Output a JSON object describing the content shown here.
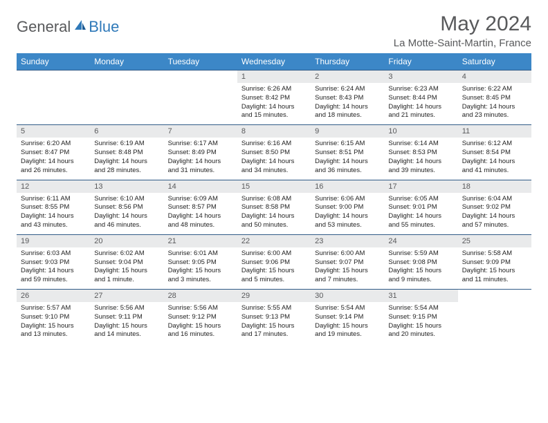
{
  "logo": {
    "text1": "General",
    "text2": "Blue"
  },
  "title": "May 2024",
  "location": "La Motte-Saint-Martin, France",
  "colors": {
    "header_bg": "#3c87c7",
    "header_text": "#ffffff",
    "daynum_bg": "#e9eaeb",
    "border": "#2f5a86",
    "text_gray": "#58595b",
    "logo_blue": "#2f79b9"
  },
  "dayNames": [
    "Sunday",
    "Monday",
    "Tuesday",
    "Wednesday",
    "Thursday",
    "Friday",
    "Saturday"
  ],
  "weeks": [
    {
      "nums": [
        "",
        "",
        "",
        "1",
        "2",
        "3",
        "4"
      ],
      "details": [
        "",
        "",
        "",
        "Sunrise: 6:26 AM\nSunset: 8:42 PM\nDaylight: 14 hours and 15 minutes.",
        "Sunrise: 6:24 AM\nSunset: 8:43 PM\nDaylight: 14 hours and 18 minutes.",
        "Sunrise: 6:23 AM\nSunset: 8:44 PM\nDaylight: 14 hours and 21 minutes.",
        "Sunrise: 6:22 AM\nSunset: 8:45 PM\nDaylight: 14 hours and 23 minutes."
      ]
    },
    {
      "nums": [
        "5",
        "6",
        "7",
        "8",
        "9",
        "10",
        "11"
      ],
      "details": [
        "Sunrise: 6:20 AM\nSunset: 8:47 PM\nDaylight: 14 hours and 26 minutes.",
        "Sunrise: 6:19 AM\nSunset: 8:48 PM\nDaylight: 14 hours and 28 minutes.",
        "Sunrise: 6:17 AM\nSunset: 8:49 PM\nDaylight: 14 hours and 31 minutes.",
        "Sunrise: 6:16 AM\nSunset: 8:50 PM\nDaylight: 14 hours and 34 minutes.",
        "Sunrise: 6:15 AM\nSunset: 8:51 PM\nDaylight: 14 hours and 36 minutes.",
        "Sunrise: 6:14 AM\nSunset: 8:53 PM\nDaylight: 14 hours and 39 minutes.",
        "Sunrise: 6:12 AM\nSunset: 8:54 PM\nDaylight: 14 hours and 41 minutes."
      ]
    },
    {
      "nums": [
        "12",
        "13",
        "14",
        "15",
        "16",
        "17",
        "18"
      ],
      "details": [
        "Sunrise: 6:11 AM\nSunset: 8:55 PM\nDaylight: 14 hours and 43 minutes.",
        "Sunrise: 6:10 AM\nSunset: 8:56 PM\nDaylight: 14 hours and 46 minutes.",
        "Sunrise: 6:09 AM\nSunset: 8:57 PM\nDaylight: 14 hours and 48 minutes.",
        "Sunrise: 6:08 AM\nSunset: 8:58 PM\nDaylight: 14 hours and 50 minutes.",
        "Sunrise: 6:06 AM\nSunset: 9:00 PM\nDaylight: 14 hours and 53 minutes.",
        "Sunrise: 6:05 AM\nSunset: 9:01 PM\nDaylight: 14 hours and 55 minutes.",
        "Sunrise: 6:04 AM\nSunset: 9:02 PM\nDaylight: 14 hours and 57 minutes."
      ]
    },
    {
      "nums": [
        "19",
        "20",
        "21",
        "22",
        "23",
        "24",
        "25"
      ],
      "details": [
        "Sunrise: 6:03 AM\nSunset: 9:03 PM\nDaylight: 14 hours and 59 minutes.",
        "Sunrise: 6:02 AM\nSunset: 9:04 PM\nDaylight: 15 hours and 1 minute.",
        "Sunrise: 6:01 AM\nSunset: 9:05 PM\nDaylight: 15 hours and 3 minutes.",
        "Sunrise: 6:00 AM\nSunset: 9:06 PM\nDaylight: 15 hours and 5 minutes.",
        "Sunrise: 6:00 AM\nSunset: 9:07 PM\nDaylight: 15 hours and 7 minutes.",
        "Sunrise: 5:59 AM\nSunset: 9:08 PM\nDaylight: 15 hours and 9 minutes.",
        "Sunrise: 5:58 AM\nSunset: 9:09 PM\nDaylight: 15 hours and 11 minutes."
      ]
    },
    {
      "nums": [
        "26",
        "27",
        "28",
        "29",
        "30",
        "31",
        ""
      ],
      "details": [
        "Sunrise: 5:57 AM\nSunset: 9:10 PM\nDaylight: 15 hours and 13 minutes.",
        "Sunrise: 5:56 AM\nSunset: 9:11 PM\nDaylight: 15 hours and 14 minutes.",
        "Sunrise: 5:56 AM\nSunset: 9:12 PM\nDaylight: 15 hours and 16 minutes.",
        "Sunrise: 5:55 AM\nSunset: 9:13 PM\nDaylight: 15 hours and 17 minutes.",
        "Sunrise: 5:54 AM\nSunset: 9:14 PM\nDaylight: 15 hours and 19 minutes.",
        "Sunrise: 5:54 AM\nSunset: 9:15 PM\nDaylight: 15 hours and 20 minutes.",
        ""
      ]
    }
  ]
}
